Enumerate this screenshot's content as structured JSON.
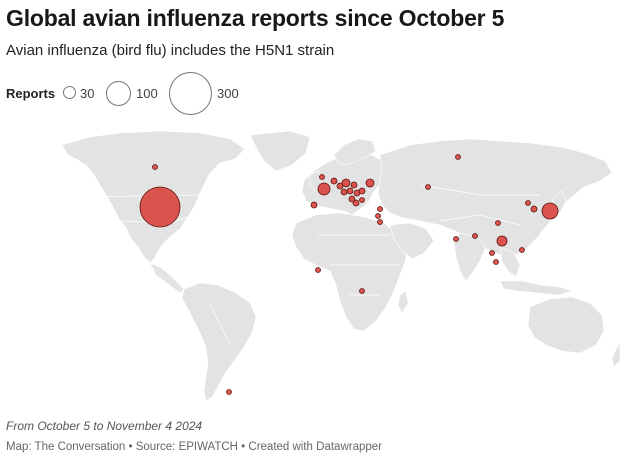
{
  "title": "Global avian influenza reports since October 5",
  "subtitle": "Avian influenza (bird flu) includes the H5N1 strain",
  "legend": {
    "label": "Reports",
    "sizes": [
      {
        "value": 30,
        "label": "30"
      },
      {
        "value": 100,
        "label": "100"
      },
      {
        "value": 300,
        "label": "300"
      }
    ]
  },
  "colors": {
    "bubble_fill": "#d83a33",
    "bubble_stroke": "#5a1410",
    "land": "#e3e3e3",
    "background": "#ffffff"
  },
  "note": "From October 5 to November 4 2024",
  "footer": "Map: The Conversation • Source: EPIWATCH • Created with Datawrapper"
}
